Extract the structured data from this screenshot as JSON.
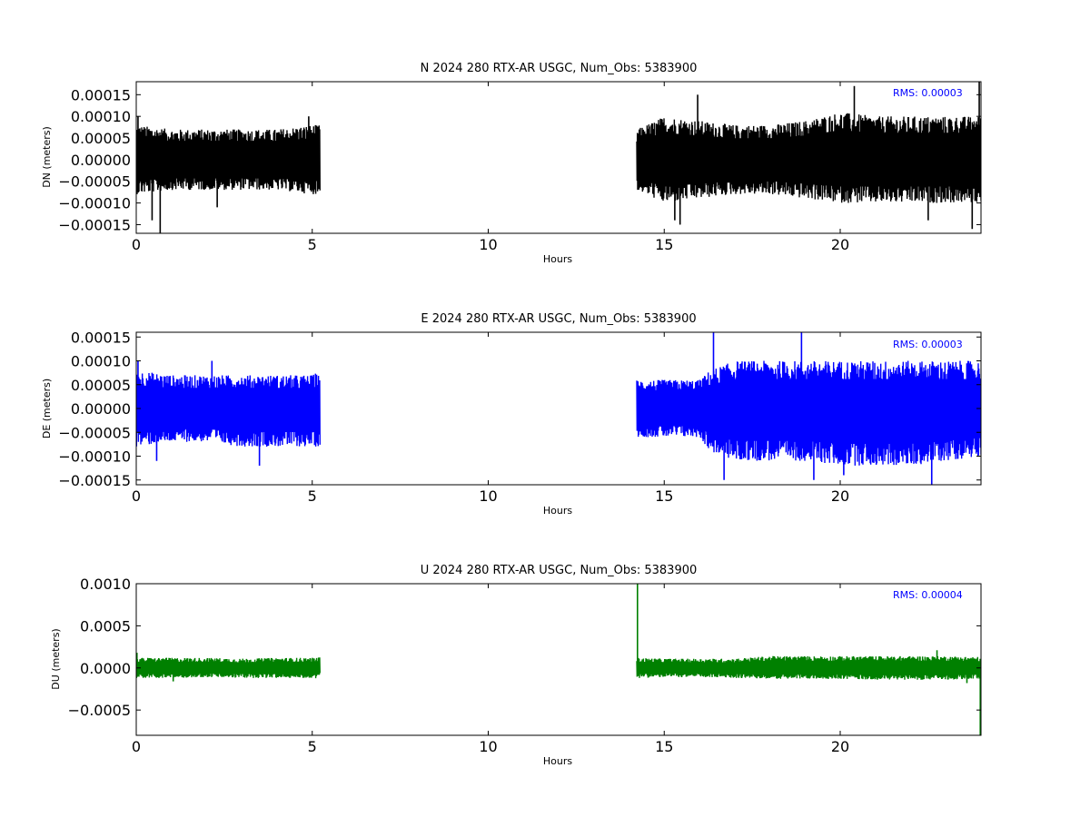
{
  "chart_data": [
    {
      "type": "line",
      "title": "N 2024 280 RTX-AR  USGC, Num_Obs: 5383900",
      "xlabel": "Hours",
      "ylabel": "DN (meters)",
      "xlim": [
        0,
        24
      ],
      "ylim": [
        -0.00017,
        0.00018
      ],
      "xticks": [
        0,
        5,
        10,
        15,
        20
      ],
      "yticks": [
        -0.00015,
        -0.0001,
        -5e-05,
        0.0,
        5e-05,
        0.0001,
        0.00015
      ],
      "ytick_labels": [
        "−0.00015",
        "−0.00010",
        "−0.00005",
        "0.00000",
        "0.00005",
        "0.00010",
        "0.00015"
      ],
      "annotation": "RMS:  0.00003",
      "color": "#000000",
      "annotation_color": "#0000ff",
      "data_segments": [
        {
          "x_range": [
            0.0,
            5.22
          ],
          "envelope_x": [
            0,
            1,
            2,
            3,
            4,
            5,
            5.22
          ],
          "envelope_upper": [
            8e-05,
            7e-05,
            7e-05,
            7e-05,
            7e-05,
            8e-05,
            8e-05
          ],
          "envelope_lower": [
            -8e-05,
            -7e-05,
            -7e-05,
            -7e-05,
            -7e-05,
            -8e-05,
            -8e-05
          ],
          "spikes": [
            [
              0.05,
              0.0001
            ],
            [
              0.68,
              -0.00017
            ],
            [
              0.45,
              -0.00014
            ],
            [
              2.3,
              -0.00011
            ],
            [
              4.9,
              0.0001
            ]
          ]
        },
        {
          "x_range": [
            14.22,
            24.0
          ],
          "envelope_x": [
            14.22,
            15,
            16,
            17,
            18,
            19,
            20,
            21,
            22,
            23,
            24
          ],
          "envelope_upper": [
            7e-05,
            0.0001,
            9e-05,
            8e-05,
            8e-05,
            9e-05,
            0.00011,
            0.0001,
            0.0001,
            0.0001,
            0.0001
          ],
          "envelope_lower": [
            -7e-05,
            -0.0001,
            -9e-05,
            -8e-05,
            -8e-05,
            -9e-05,
            -0.0001,
            -0.0001,
            -0.0001,
            -0.0001,
            -0.0001
          ],
          "spikes": [
            [
              15.3,
              -0.00014
            ],
            [
              15.45,
              -0.00015
            ],
            [
              15.95,
              0.00015
            ],
            [
              20.4,
              0.00017
            ],
            [
              22.5,
              -0.00014
            ],
            [
              23.75,
              -0.00016
            ],
            [
              23.95,
              0.00018
            ]
          ]
        }
      ]
    },
    {
      "type": "line",
      "title": "E 2024 280 RTX-AR  USGC, Num_Obs: 5383900",
      "xlabel": "Hours",
      "ylabel": "DE (meters)",
      "xlim": [
        0,
        24
      ],
      "ylim": [
        -0.00016,
        0.00016
      ],
      "xticks": [
        0,
        5,
        10,
        15,
        20
      ],
      "yticks": [
        -0.00015,
        -0.0001,
        -5e-05,
        0.0,
        5e-05,
        0.0001,
        0.00015
      ],
      "ytick_labels": [
        "−0.00015",
        "−0.00010",
        "−0.00005",
        "0.00000",
        "0.00005",
        "0.00010",
        "0.00015"
      ],
      "annotation": "RMS:  0.00003",
      "color": "#0000ff",
      "annotation_color": "#0000ff",
      "data_segments": [
        {
          "x_range": [
            0.0,
            5.22
          ],
          "envelope_x": [
            0,
            1,
            2,
            3,
            4,
            5,
            5.22
          ],
          "envelope_upper": [
            8e-05,
            7e-05,
            7e-05,
            7e-05,
            7e-05,
            7e-05,
            8e-05
          ],
          "envelope_lower": [
            -8e-05,
            -7e-05,
            -7e-05,
            -8e-05,
            -8e-05,
            -8e-05,
            -8e-05
          ],
          "spikes": [
            [
              0.05,
              0.0001
            ],
            [
              0.58,
              -0.00011
            ],
            [
              2.15,
              0.0001
            ],
            [
              3.5,
              -0.00012
            ]
          ]
        },
        {
          "x_range": [
            14.22,
            24.0
          ],
          "envelope_x": [
            14.22,
            15,
            16,
            16.3,
            17,
            18,
            19,
            20,
            21,
            22,
            23,
            24
          ],
          "envelope_upper": [
            6e-05,
            6e-05,
            6e-05,
            8e-05,
            0.0001,
            0.0001,
            0.0001,
            0.0001,
            0.0001,
            0.0001,
            0.0001,
            0.0001
          ],
          "envelope_lower": [
            -6e-05,
            -6e-05,
            -6e-05,
            -9e-05,
            -0.00011,
            -0.00011,
            -0.00011,
            -0.00012,
            -0.00012,
            -0.00012,
            -0.00011,
            -0.0001
          ],
          "spikes": [
            [
              16.4,
              0.00016
            ],
            [
              16.7,
              -0.00015
            ],
            [
              18.9,
              0.00016
            ],
            [
              19.25,
              -0.00015
            ],
            [
              20.1,
              -0.00014
            ],
            [
              22.6,
              -0.00016
            ]
          ]
        }
      ]
    },
    {
      "type": "line",
      "title": "U 2024 280 RTX-AR  USGC, Num_Obs: 5383900",
      "xlabel": "Hours",
      "ylabel": "DU (meters)",
      "xlim": [
        0,
        24
      ],
      "ylim": [
        -0.0008,
        0.001
      ],
      "xticks": [
        0,
        5,
        10,
        15,
        20
      ],
      "yticks": [
        -0.0005,
        0.0,
        0.0005,
        0.001
      ],
      "ytick_labels": [
        "−0.0005",
        "0.0000",
        "0.0005",
        "0.0010"
      ],
      "annotation": "RMS:  0.00004",
      "color": "#008000",
      "annotation_color": "#0000ff",
      "data_segments": [
        {
          "x_range": [
            0.0,
            5.22
          ],
          "envelope_x": [
            0,
            1,
            2,
            3,
            4,
            5,
            5.22
          ],
          "envelope_upper": [
            0.00012,
            0.00012,
            0.00012,
            0.00011,
            0.00012,
            0.00012,
            0.00013
          ],
          "envelope_lower": [
            -0.00012,
            -0.00012,
            -0.00011,
            -0.00012,
            -0.00012,
            -0.00012,
            -0.00013
          ],
          "spikes": [
            [
              0.02,
              0.00018
            ],
            [
              1.05,
              -0.00016
            ]
          ]
        },
        {
          "x_range": [
            14.22,
            24.0
          ],
          "envelope_x": [
            14.22,
            15,
            16,
            17,
            18,
            19,
            20,
            21,
            22,
            23,
            24
          ],
          "envelope_upper": [
            0.00012,
            0.00011,
            0.00011,
            0.00011,
            0.00014,
            0.00014,
            0.00014,
            0.00014,
            0.00014,
            0.00014,
            0.00013
          ],
          "envelope_lower": [
            -0.00012,
            -0.00011,
            -0.00011,
            -0.00012,
            -0.00013,
            -0.00013,
            -0.00013,
            -0.00014,
            -0.00014,
            -0.00014,
            -0.00013
          ],
          "spikes": [
            [
              14.24,
              0.001
            ],
            [
              22.75,
              0.00021
            ],
            [
              23.6,
              -0.00018
            ],
            [
              23.98,
              -0.0008
            ]
          ]
        }
      ]
    }
  ]
}
